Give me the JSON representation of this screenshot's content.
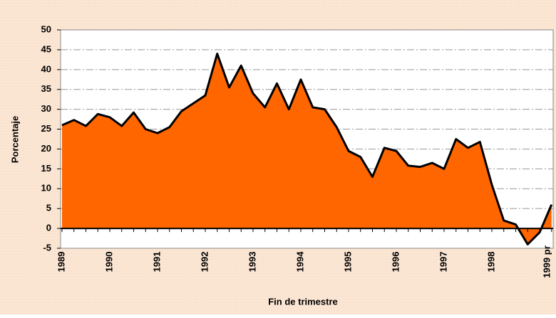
{
  "chart_data": {
    "type": "area",
    "ylabel": "Porcentaje",
    "xlabel": "Fin de trimestre",
    "categories": [
      "1989",
      null,
      null,
      null,
      "1990",
      null,
      null,
      null,
      "1991",
      null,
      null,
      null,
      "1992",
      null,
      null,
      null,
      "1993",
      null,
      null,
      null,
      "1994",
      null,
      null,
      null,
      "1995",
      null,
      null,
      null,
      "1996",
      null,
      null,
      null,
      "1997",
      null,
      null,
      null,
      "1998",
      null,
      null,
      null,
      null,
      "1999 pr"
    ],
    "values": [
      26,
      27.3,
      25.8,
      28.8,
      28,
      25.8,
      29.2,
      25,
      24,
      25.5,
      29.5,
      31.5,
      33.5,
      44,
      35.5,
      41,
      34,
      30.5,
      36.5,
      30,
      37.5,
      30.5,
      30,
      25.5,
      19.5,
      18,
      13,
      20.3,
      19.5,
      15.8,
      15.5,
      16.5,
      15,
      22.5,
      20.3,
      21.8,
      11,
      2,
      1,
      -4,
      -1,
      6
    ],
    "color": "#ff6600",
    "ylim": [
      -5,
      50
    ],
    "yticks": [
      -5,
      0,
      5,
      10,
      15,
      20,
      25,
      30,
      35,
      40,
      45,
      50
    ],
    "grid": true
  }
}
